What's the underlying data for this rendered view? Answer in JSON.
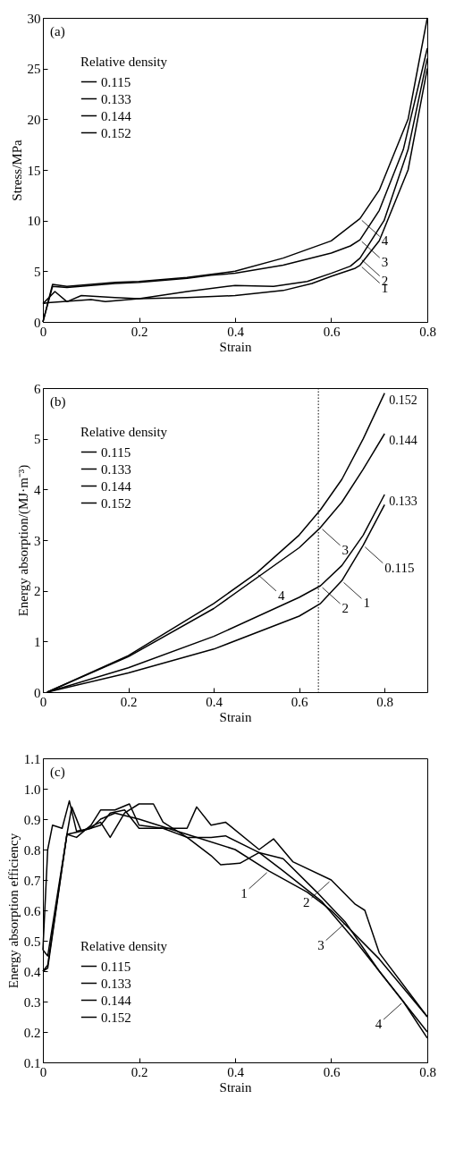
{
  "chart_data": [
    {
      "type": "line",
      "title": "(a)",
      "xlabel": "Strain",
      "ylabel": "Stress/MPa",
      "legend_title": "Relative density",
      "legend": "top left",
      "grid": false,
      "line_style": "solid",
      "xlim": [
        0,
        0.8
      ],
      "ylim": [
        0,
        30
      ],
      "xticks": [
        0,
        0.2,
        0.4,
        0.6,
        0.8
      ],
      "yticks": [
        0,
        5,
        10,
        15,
        20,
        25,
        30
      ],
      "series": [
        {
          "name": "0.115",
          "color": "#000000",
          "x": [
            0,
            0.01,
            0.1,
            0.13,
            0.2,
            0.3,
            0.4,
            0.5,
            0.56,
            0.6,
            0.65,
            0.66,
            0.7,
            0.76,
            0.8
          ],
          "values": [
            1.8,
            1.9,
            2.2,
            2.0,
            2.3,
            2.4,
            2.6,
            3.1,
            3.8,
            4.5,
            5.3,
            5.6,
            8,
            15,
            25
          ]
        },
        {
          "name": "0.133",
          "color": "#000000",
          "x": [
            0,
            0.025,
            0.05,
            0.08,
            0.15,
            0.2,
            0.3,
            0.4,
            0.48,
            0.55,
            0.6,
            0.64,
            0.66,
            0.71,
            0.76,
            0.8
          ],
          "values": [
            1.8,
            3.0,
            2.0,
            2.6,
            2.4,
            2.3,
            3.0,
            3.6,
            3.5,
            4.0,
            4.8,
            5.5,
            6.3,
            10,
            17,
            26
          ]
        },
        {
          "name": "0.144",
          "color": "#000000",
          "x": [
            0,
            0.02,
            0.05,
            0.1,
            0.15,
            0.2,
            0.3,
            0.35,
            0.4,
            0.5,
            0.6,
            0.64,
            0.66,
            0.7,
            0.75,
            0.8
          ],
          "values": [
            0,
            3.5,
            3.4,
            3.6,
            3.8,
            3.9,
            4.3,
            4.6,
            4.8,
            5.6,
            6.8,
            7.5,
            8.1,
            11,
            17,
            27
          ]
        },
        {
          "name": "0.152",
          "color": "#000000",
          "x": [
            0,
            0.02,
            0.05,
            0.1,
            0.15,
            0.2,
            0.3,
            0.4,
            0.5,
            0.6,
            0.66,
            0.7,
            0.76,
            0.8
          ],
          "values": [
            0,
            3.7,
            3.5,
            3.7,
            3.9,
            4.0,
            4.4,
            5.0,
            6.3,
            8,
            10.2,
            13,
            20,
            30
          ]
        }
      ],
      "annotations": [
        {
          "text": "4",
          "x": 0.66,
          "y": 10.2
        },
        {
          "text": "3",
          "x": 0.66,
          "y": 8.1
        },
        {
          "text": "2",
          "x": 0.66,
          "y": 6.3
        },
        {
          "text": "1",
          "x": 0.66,
          "y": 5.6
        }
      ]
    },
    {
      "type": "line",
      "title": "(b)",
      "xlabel": "Strain",
      "ylabel": "Energy absorption/(MJ·m⁻³)",
      "legend_title": "Relative density",
      "legend": "top left",
      "grid": false,
      "line_style": "solid",
      "xlim": [
        0,
        0.9
      ],
      "ylim": [
        0,
        6
      ],
      "xticks": [
        0,
        0.2,
        0.4,
        0.6,
        0.8
      ],
      "yticks": [
        0,
        1,
        2,
        3,
        4,
        5,
        6
      ],
      "series": [
        {
          "name": "0.115",
          "color": "#000000",
          "x": [
            0.01,
            0.2,
            0.4,
            0.6,
            0.65,
            0.7,
            0.75,
            0.8
          ],
          "values": [
            0,
            0.38,
            0.85,
            1.5,
            1.75,
            2.2,
            2.9,
            3.7
          ]
        },
        {
          "name": "0.133",
          "color": "#000000",
          "x": [
            0.01,
            0.2,
            0.4,
            0.6,
            0.65,
            0.7,
            0.75,
            0.8
          ],
          "values": [
            0,
            0.48,
            1.1,
            1.87,
            2.1,
            2.5,
            3.1,
            3.9
          ]
        },
        {
          "name": "0.144",
          "color": "#000000",
          "x": [
            0.01,
            0.2,
            0.4,
            0.6,
            0.65,
            0.7,
            0.75,
            0.8
          ],
          "values": [
            0,
            0.7,
            1.65,
            2.85,
            3.25,
            3.75,
            4.4,
            5.1
          ]
        },
        {
          "name": "0.152",
          "color": "#000000",
          "x": [
            0.01,
            0.2,
            0.4,
            0.5,
            0.6,
            0.65,
            0.7,
            0.75,
            0.8
          ],
          "values": [
            0,
            0.72,
            1.75,
            2.35,
            3.1,
            3.6,
            4.2,
            5.0,
            5.9
          ]
        }
      ],
      "ref_lines": [
        {
          "axis": "x",
          "value": 0.645,
          "label": null,
          "line_style": "dotted"
        }
      ],
      "annotations": [
        {
          "text": "0.152",
          "x": 0.8,
          "y": 5.9
        },
        {
          "text": "0.144",
          "x": 0.8,
          "y": 5.1
        },
        {
          "text": "0.133",
          "x": 0.8,
          "y": 3.9
        },
        {
          "text": "0.115",
          "x": 0.75,
          "y": 2.9
        },
        {
          "text": "3",
          "x": 0.65,
          "y": 3.25
        },
        {
          "text": "4",
          "x": 0.5,
          "y": 2.35
        },
        {
          "text": "2",
          "x": 0.65,
          "y": 2.1
        },
        {
          "text": "1",
          "x": 0.7,
          "y": 2.2
        }
      ]
    },
    {
      "type": "line",
      "title": "(c)",
      "xlabel": "Strain",
      "ylabel": "Energy absorption efficiency",
      "legend_title": "Relative density",
      "legend": "bottom left",
      "grid": false,
      "line_style": "solid",
      "xlim": [
        0,
        0.8
      ],
      "ylim": [
        0.1,
        1.1
      ],
      "xticks": [
        0,
        0.2,
        0.4,
        0.6,
        0.8
      ],
      "yticks": [
        0.1,
        0.2,
        0.3,
        0.4,
        0.5,
        0.6,
        0.7,
        0.8,
        0.9,
        {
          "value": 1,
          "label": "1.0"
        },
        1.1
      ],
      "series": [
        {
          "name": "0.115",
          "color": "#000000",
          "x": [
            0,
            0.01,
            0.02,
            0.04,
            0.055,
            0.07,
            0.1,
            0.12,
            0.15,
            0.2,
            0.3,
            0.4,
            0.47,
            0.55,
            0.6,
            0.7,
            0.8
          ],
          "values": [
            0.47,
            0.8,
            0.88,
            0.87,
            0.96,
            0.86,
            0.87,
            0.9,
            0.92,
            0.9,
            0.85,
            0.8,
            0.73,
            0.66,
            0.6,
            0.44,
            0.25
          ]
        },
        {
          "name": "0.133",
          "color": "#000000",
          "x": [
            0,
            0.01,
            0.05,
            0.07,
            0.1,
            0.12,
            0.15,
            0.18,
            0.2,
            0.25,
            0.3,
            0.32,
            0.35,
            0.38,
            0.45,
            0.48,
            0.52,
            0.6,
            0.65,
            0.67,
            0.7,
            0.8
          ],
          "values": [
            0.47,
            0.45,
            0.85,
            0.84,
            0.88,
            0.93,
            0.93,
            0.95,
            0.88,
            0.87,
            0.87,
            0.94,
            0.88,
            0.89,
            0.8,
            0.835,
            0.76,
            0.7,
            0.62,
            0.6,
            0.46,
            0.25
          ]
        },
        {
          "name": "0.144",
          "color": "#000000",
          "x": [
            0,
            0.01,
            0.05,
            0.08,
            0.12,
            0.14,
            0.17,
            0.2,
            0.23,
            0.25,
            0.3,
            0.35,
            0.37,
            0.41,
            0.45,
            0.5,
            0.57,
            0.63,
            0.7,
            0.8
          ],
          "values": [
            0.4,
            0.41,
            0.85,
            0.86,
            0.89,
            0.84,
            0.92,
            0.95,
            0.95,
            0.89,
            0.84,
            0.78,
            0.75,
            0.755,
            0.79,
            0.77,
            0.66,
            0.56,
            0.4,
            0.2
          ]
        },
        {
          "name": "0.152",
          "color": "#000000",
          "x": [
            0,
            0.01,
            0.05,
            0.06,
            0.08,
            0.12,
            0.14,
            0.17,
            0.2,
            0.25,
            0.3,
            0.35,
            0.38,
            0.45,
            0.5,
            0.58,
            0.65,
            0.7,
            0.75,
            0.8
          ],
          "values": [
            0.4,
            0.42,
            0.85,
            0.94,
            0.86,
            0.88,
            0.92,
            0.93,
            0.87,
            0.87,
            0.84,
            0.84,
            0.845,
            0.79,
            0.73,
            0.63,
            0.5,
            0.4,
            0.3,
            0.18
          ]
        }
      ],
      "annotations": [
        {
          "text": "1",
          "x": 0.47,
          "y": 0.73
        },
        {
          "text": "2",
          "x": 0.6,
          "y": 0.7
        },
        {
          "text": "3",
          "x": 0.63,
          "y": 0.56
        },
        {
          "text": "4",
          "x": 0.75,
          "y": 0.3
        }
      ]
    }
  ]
}
